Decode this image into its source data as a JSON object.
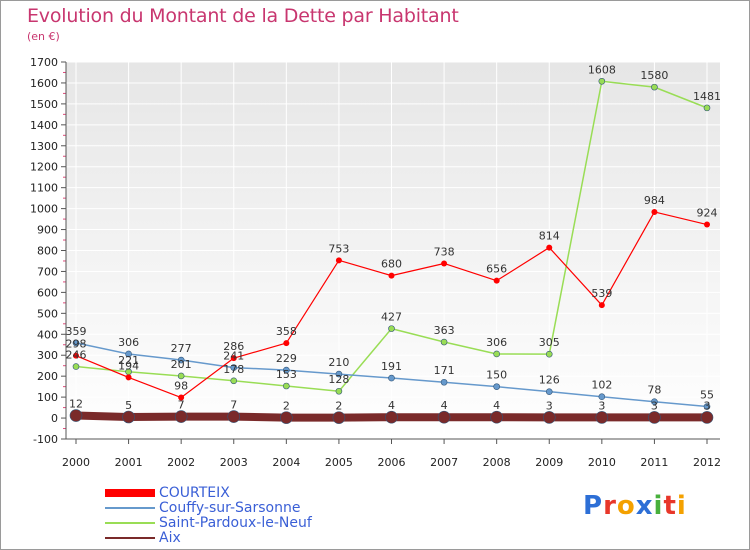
{
  "title": "Evolution du Montant de la Dette par Habitant",
  "subtitle": "(en €)",
  "logo": {
    "text": "Proxiti",
    "colors": [
      "#2d6fd6",
      "#e8372a",
      "#f4a100",
      "#2d6fd6",
      "#48b03c",
      "#e8372a",
      "#f4a100"
    ]
  },
  "chart_data": {
    "type": "line",
    "title": "Evolution du Montant de la Dette par Habitant",
    "subtitle": "(en €)",
    "x": [
      "2000",
      "2001",
      "2002",
      "2003",
      "2004",
      "2005",
      "2006",
      "2007",
      "2008",
      "2009",
      "2010",
      "2011",
      "2012"
    ],
    "y_ticks": [
      "-100",
      "0",
      "100",
      "200",
      "300",
      "400",
      "500",
      "600",
      "700",
      "800",
      "900",
      "1000",
      "1100",
      "1200",
      "1300",
      "1400",
      "1500",
      "1600",
      "1700"
    ],
    "ylim": [
      -100,
      1700
    ],
    "grid": true,
    "legend_position": "bottom-left",
    "series": [
      {
        "name": "COURTEIX",
        "color": "#ff0000",
        "values": [
          298,
          194,
          98,
          286,
          358,
          753,
          680,
          738,
          656,
          814,
          539,
          984,
          924
        ],
        "labels": [
          "298",
          "194",
          "98",
          "286",
          "358",
          "753",
          "680",
          "738",
          "656",
          "814",
          "539",
          "984",
          "924"
        ]
      },
      {
        "name": "Couffy-sur-Sarsonne",
        "color": "#6699cc",
        "values": [
          359,
          306,
          277,
          241,
          229,
          210,
          191,
          171,
          150,
          126,
          102,
          78,
          55
        ],
        "labels": [
          "359",
          "306",
          "277",
          "241",
          "229",
          "210",
          "191",
          "171",
          "150",
          "126",
          "102",
          "78",
          "55"
        ]
      },
      {
        "name": "Saint-Pardoux-le-Neuf",
        "color": "#99dd55",
        "values": [
          246,
          221,
          201,
          178,
          153,
          128,
          427,
          363,
          306,
          305,
          1608,
          1580,
          1481
        ],
        "labels": [
          "246",
          "221",
          "201",
          "178",
          "153",
          "128",
          "427",
          "363",
          "306",
          "305",
          "1608",
          "1580",
          "1481"
        ]
      },
      {
        "name": "Aix",
        "color": "#7a2a2a",
        "values": [
          12,
          5,
          7,
          7,
          2,
          2,
          4,
          4,
          4,
          3,
          3,
          3,
          3
        ],
        "labels": [
          "12",
          "5",
          "7",
          "7",
          "2",
          "2",
          "4",
          "4",
          "4",
          "3",
          "3",
          "3",
          "3"
        ]
      }
    ]
  }
}
